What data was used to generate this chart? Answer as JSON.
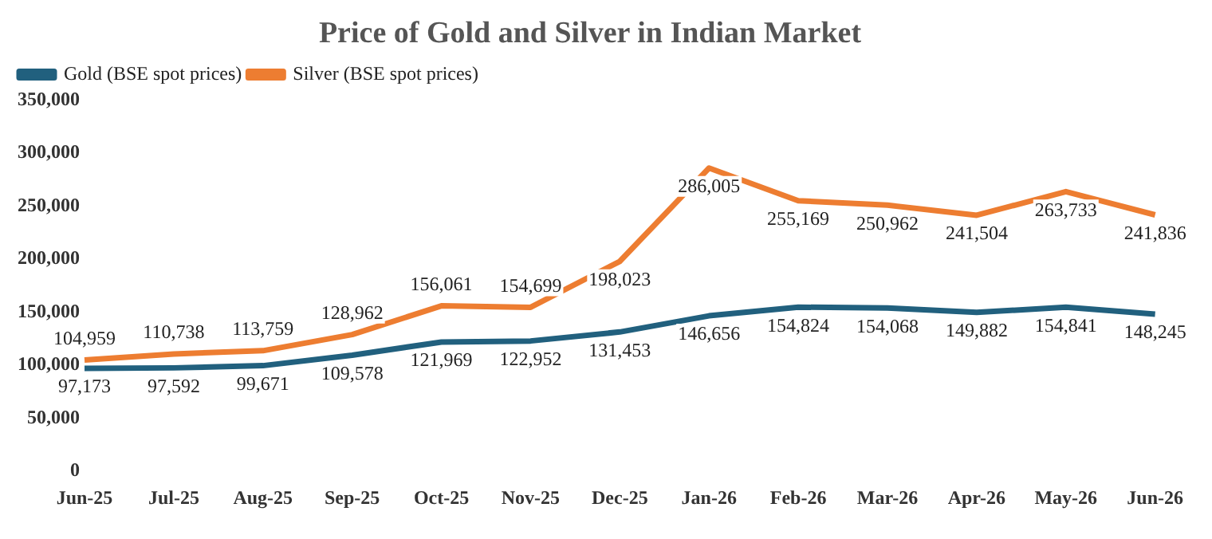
{
  "chart_data": {
    "type": "line",
    "title": "Price of Gold and Silver in Indian Market",
    "categories": [
      "Jun-25",
      "Jul-25",
      "Aug-25",
      "Sep-25",
      "Oct-25",
      "Nov-25",
      "Dec-25",
      "Jan-26",
      "Feb-26",
      "Mar-26",
      "Apr-26",
      "May-26",
      "Jun-26"
    ],
    "series": [
      {
        "name": "Gold (BSE spot prices)",
        "color": "#21607e",
        "values": [
          97173,
          97592,
          99671,
          109578,
          121969,
          122952,
          131453,
          146656,
          154824,
          154068,
          149882,
          154841,
          148245
        ],
        "value_labels": [
          "97,173",
          "97,592",
          "99,671",
          "109,578",
          "121,969",
          "122,952",
          "131,453",
          "146,656",
          "154,824",
          "154,068",
          "149,882",
          "154,841",
          "148,245"
        ]
      },
      {
        "name": "Silver (BSE spot prices)",
        "color": "#ed7d31",
        "values": [
          104959,
          110738,
          113759,
          128962,
          156061,
          154699,
          198023,
          286005,
          255169,
          250962,
          241504,
          263733,
          241836
        ],
        "value_labels": [
          "104,959",
          "110,738",
          "113,759",
          "128,962",
          "156,061",
          "154,699",
          "198,023",
          "286,005",
          "255,169",
          "250,962",
          "241,504",
          "263,733",
          "241,836"
        ]
      }
    ],
    "ylim": [
      0,
      350000
    ],
    "yticks": [
      {
        "value": 0,
        "label": "0"
      },
      {
        "value": 50000,
        "label": "50,000"
      },
      {
        "value": 100000,
        "label": "100,000"
      },
      {
        "value": 150000,
        "label": "150,000"
      },
      {
        "value": 200000,
        "label": "200,000"
      },
      {
        "value": 250000,
        "label": "250,000"
      },
      {
        "value": 300000,
        "label": "300,000"
      },
      {
        "value": 350000,
        "label": "350,000"
      }
    ],
    "grid": false,
    "legend": "top left",
    "marker": "none",
    "line_style": "solid"
  }
}
